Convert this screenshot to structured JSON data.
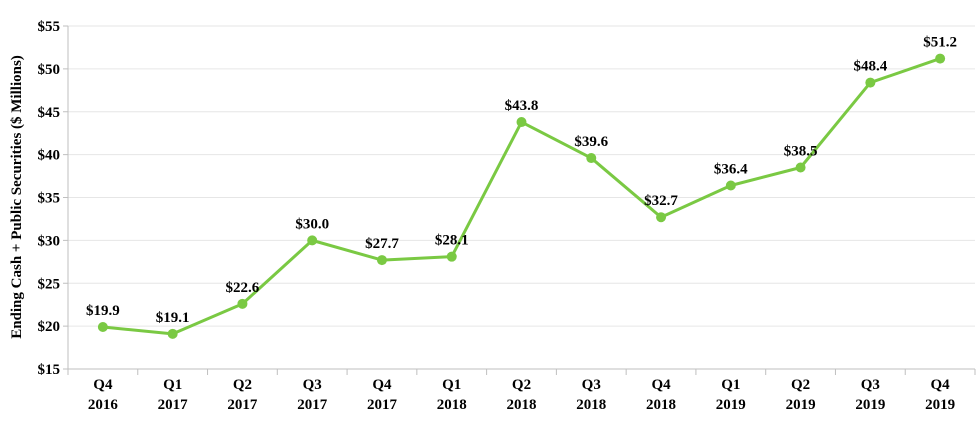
{
  "chart_data": {
    "type": "line",
    "title": "",
    "xlabel": "",
    "ylabel": "Ending Cash + Public Securities ($ Millions)",
    "ylim": [
      15,
      55
    ],
    "ytick_step": 5,
    "ytick_labels": [
      "$15",
      "$20",
      "$25",
      "$30",
      "$35",
      "$40",
      "$45",
      "$50",
      "$55"
    ],
    "grid": true,
    "legend": "none",
    "colors": {
      "line": "#7AC943",
      "grid": "#e6e6e6",
      "axis": "#bfbfbf"
    },
    "categories": [
      [
        "Q4",
        "2016"
      ],
      [
        "Q1",
        "2017"
      ],
      [
        "Q2",
        "2017"
      ],
      [
        "Q3",
        "2017"
      ],
      [
        "Q4",
        "2017"
      ],
      [
        "Q1",
        "2018"
      ],
      [
        "Q2",
        "2018"
      ],
      [
        "Q3",
        "2018"
      ],
      [
        "Q4",
        "2018"
      ],
      [
        "Q1",
        "2019"
      ],
      [
        "Q2",
        "2019"
      ],
      [
        "Q3",
        "2019"
      ],
      [
        "Q4",
        "2019"
      ]
    ],
    "values": [
      19.9,
      19.1,
      22.6,
      30.0,
      27.7,
      28.1,
      43.8,
      39.6,
      32.7,
      36.4,
      38.5,
      48.4,
      51.2
    ],
    "data_labels": [
      "$19.9",
      "$19.1",
      "$22.6",
      "$30.0",
      "$27.7",
      "$28.1",
      "$43.8",
      "$39.6",
      "$32.7",
      "$36.4",
      "$38.5",
      "$48.4",
      "$51.2"
    ]
  }
}
